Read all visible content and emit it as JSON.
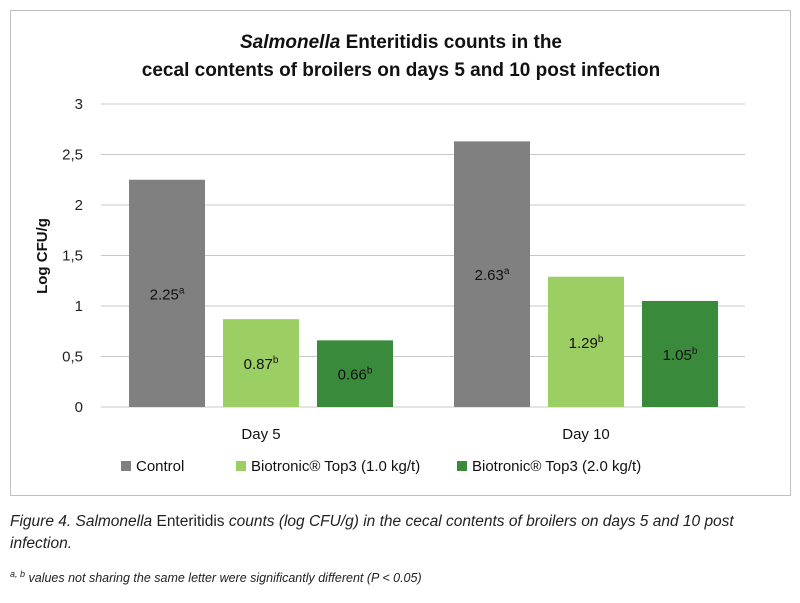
{
  "chart_data": {
    "type": "bar",
    "title_parts": [
      {
        "text": "Salmonella",
        "italic": true
      },
      {
        "text": " Enteritidis counts in the",
        "italic": false
      },
      {
        "text": "cecal contents of broilers on days 5 and 10 post infection",
        "italic": false
      }
    ],
    "ylabel": "Log CFU/g",
    "xlabel": "",
    "ylim": [
      0,
      3
    ],
    "yticks": [
      "0",
      "0,5",
      "1",
      "1,5",
      "2",
      "2,5",
      "3"
    ],
    "ytick_values": [
      0,
      0.5,
      1,
      1.5,
      2,
      2.5,
      3
    ],
    "grid": true,
    "legend_position": "bottom",
    "categories": [
      "Day 5",
      "Day 10"
    ],
    "series": [
      {
        "name": "Control",
        "color": "#808080",
        "values": [
          2.25,
          2.63
        ],
        "labels": [
          "2.25",
          "2.63"
        ],
        "letters": [
          "a",
          "a"
        ]
      },
      {
        "name": "Biotronic® Top3 (1.0 kg/t)",
        "color": "#9ccf63",
        "values": [
          0.87,
          1.29
        ],
        "labels": [
          "0.87",
          "1.29"
        ],
        "letters": [
          "b",
          "b"
        ]
      },
      {
        "name": "Biotronic® Top3 (2.0 kg/t)",
        "color": "#3a8a3c",
        "values": [
          0.66,
          1.05
        ],
        "labels": [
          "0.66",
          "1.05"
        ],
        "letters": [
          "b",
          "b"
        ]
      }
    ]
  },
  "caption": {
    "prefix": "Figure 4. ",
    "organism": "Salmonella",
    "organism_suffix": " Enteritidis",
    "rest": " counts (log CFU/g) in the cecal contents of broilers on days 5 and 10 post infection."
  },
  "footnote": {
    "superscript": "a, b",
    "text": " values not sharing the same letter were significantly different (P < 0.05)"
  }
}
